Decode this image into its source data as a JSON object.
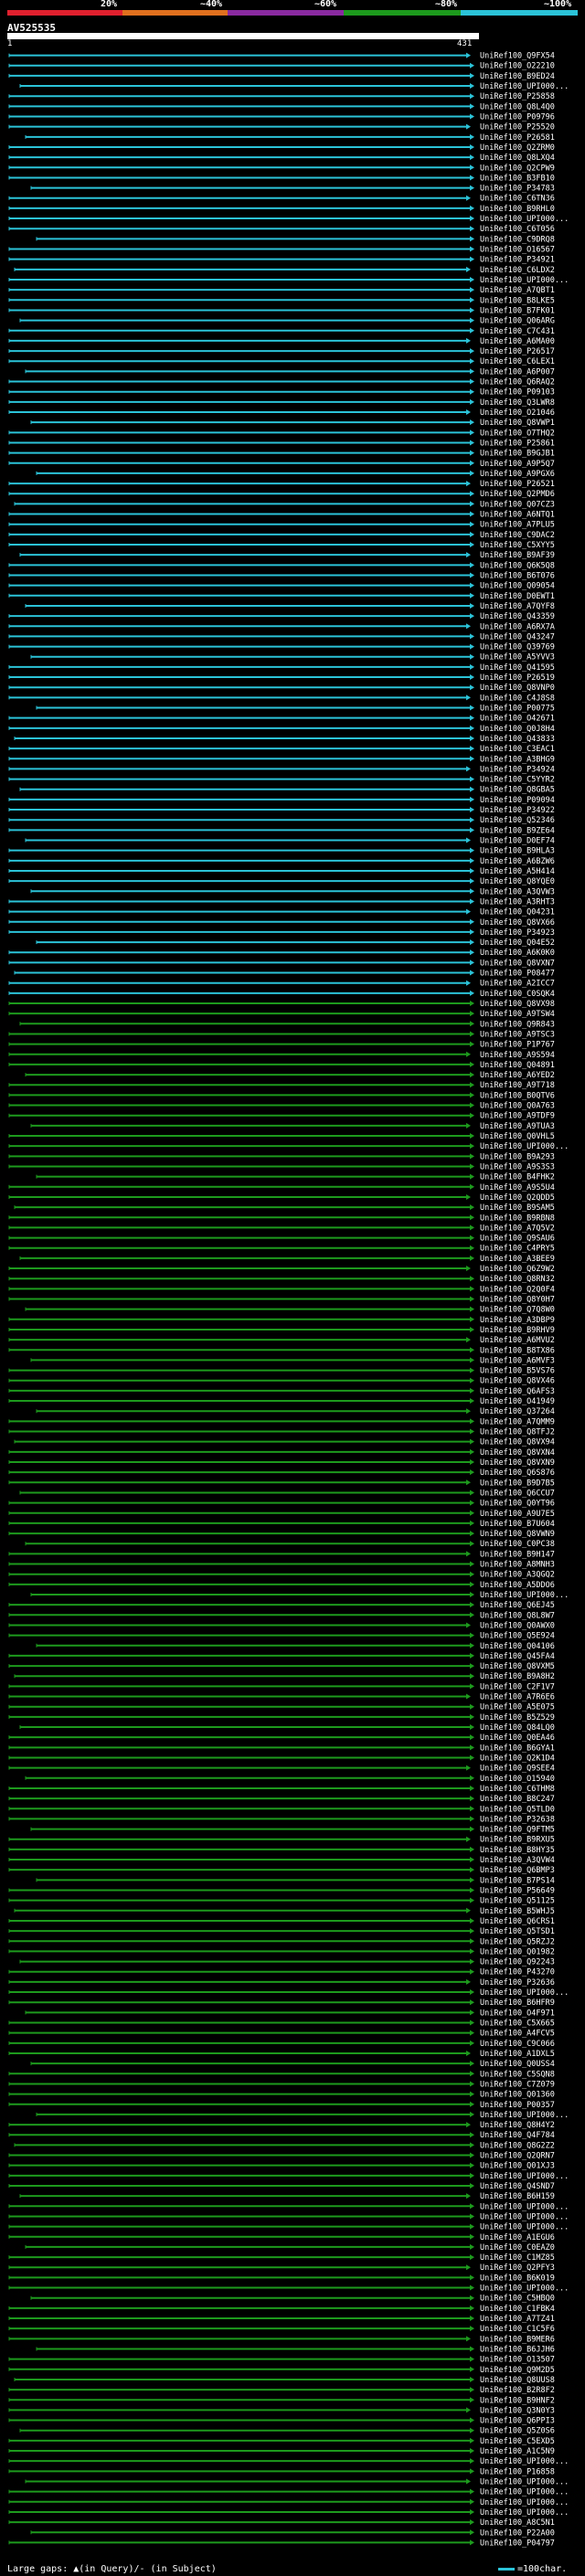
{
  "legend": {
    "labels": [
      "20%",
      "~40%",
      "~60%",
      "~80%",
      "~100%"
    ],
    "colors": [
      "#e0202e",
      "#e0701e",
      "#8a2aa0",
      "#1d9a1d",
      "#2bc3d8"
    ]
  },
  "query": {
    "id": "AV525535",
    "start": "1",
    "end": "431"
  },
  "footer": {
    "large_gaps": "Large gaps: ▲(in Query)/- (in Subject)",
    "key": "=100char."
  },
  "hits": [
    {
      "id": "UniRef100_Q9FX54",
      "color": "cyan"
    },
    {
      "id": "UniRef100_O22210",
      "color": "cyan"
    },
    {
      "id": "UniRef100_B9ED24",
      "color": "cyan"
    },
    {
      "id": "UniRef100_UPI000...",
      "color": "cyan"
    },
    {
      "id": "UniRef100_P25858",
      "color": "cyan"
    },
    {
      "id": "UniRef100_Q8L4Q0",
      "color": "cyan"
    },
    {
      "id": "UniRef100_P09796",
      "color": "cyan"
    },
    {
      "id": "UniRef100_P25520",
      "color": "cyan"
    },
    {
      "id": "UniRef100_P26581",
      "color": "cyan"
    },
    {
      "id": "UniRef100_Q2ZRM0",
      "color": "cyan"
    },
    {
      "id": "UniRef100_Q8LXQ4",
      "color": "cyan"
    },
    {
      "id": "UniRef100_Q2CPW9",
      "color": "cyan"
    },
    {
      "id": "UniRef100_B3FB10",
      "color": "cyan"
    },
    {
      "id": "UniRef100_P34783",
      "color": "cyan"
    },
    {
      "id": "UniRef100_C6TN36",
      "color": "cyan"
    },
    {
      "id": "UniRef100_B9RHL0",
      "color": "cyan"
    },
    {
      "id": "UniRef100_UPI000...",
      "color": "cyan"
    },
    {
      "id": "UniRef100_C6T056",
      "color": "cyan"
    },
    {
      "id": "UniRef100_C9DRQ8",
      "color": "cyan"
    },
    {
      "id": "UniRef100_O16567",
      "color": "cyan"
    },
    {
      "id": "UniRef100_P34921",
      "color": "cyan"
    },
    {
      "id": "UniRef100_C6LDX2",
      "color": "cyan"
    },
    {
      "id": "UniRef100_UPI000...",
      "color": "cyan"
    },
    {
      "id": "UniRef100_A7QBT1",
      "color": "cyan"
    },
    {
      "id": "UniRef100_B8LKE5",
      "color": "cyan"
    },
    {
      "id": "UniRef100_B7FK01",
      "color": "cyan"
    },
    {
      "id": "UniRef100_Q06ARG",
      "color": "cyan"
    },
    {
      "id": "UniRef100_C7C431",
      "color": "cyan"
    },
    {
      "id": "UniRef100_A6MA00",
      "color": "cyan"
    },
    {
      "id": "UniRef100_P26517",
      "color": "cyan"
    },
    {
      "id": "UniRef100_C6LEX1",
      "color": "cyan"
    },
    {
      "id": "UniRef100_A6P007",
      "color": "cyan"
    },
    {
      "id": "UniRef100_Q6RAQ2",
      "color": "cyan"
    },
    {
      "id": "UniRef100_P09103",
      "color": "cyan"
    },
    {
      "id": "UniRef100_Q3LWR8",
      "color": "cyan"
    },
    {
      "id": "UniRef100_O21046",
      "color": "cyan"
    },
    {
      "id": "UniRef100_Q8VWP1",
      "color": "cyan"
    },
    {
      "id": "UniRef100_O7THQ2",
      "color": "cyan"
    },
    {
      "id": "UniRef100_P25861",
      "color": "cyan"
    },
    {
      "id": "UniRef100_B9GJB1",
      "color": "cyan"
    },
    {
      "id": "UniRef100_A9P5Q7",
      "color": "cyan"
    },
    {
      "id": "UniRef100_A9PGX6",
      "color": "cyan"
    },
    {
      "id": "UniRef100_P26521",
      "color": "cyan"
    },
    {
      "id": "UniRef100_Q2PMD6",
      "color": "cyan"
    },
    {
      "id": "UniRef100_Q07CZ3",
      "color": "cyan"
    },
    {
      "id": "UniRef100_A6NTQ1",
      "color": "cyan"
    },
    {
      "id": "UniRef100_A7PLU5",
      "color": "cyan"
    },
    {
      "id": "UniRef100_C9DAC2",
      "color": "cyan"
    },
    {
      "id": "UniRef100_C5XYY5",
      "color": "cyan"
    },
    {
      "id": "UniRef100_B9AF39",
      "color": "cyan"
    },
    {
      "id": "UniRef100_Q6K5Q8",
      "color": "cyan"
    },
    {
      "id": "UniRef100_B6T076",
      "color": "cyan"
    },
    {
      "id": "UniRef100_Q09054",
      "color": "cyan"
    },
    {
      "id": "UniRef100_D0EWT1",
      "color": "cyan"
    },
    {
      "id": "UniRef100_A7QYF8",
      "color": "cyan"
    },
    {
      "id": "UniRef100_Q43359",
      "color": "cyan"
    },
    {
      "id": "UniRef100_A6RX7A",
      "color": "cyan"
    },
    {
      "id": "UniRef100_Q43247",
      "color": "cyan"
    },
    {
      "id": "UniRef100_Q39769",
      "color": "cyan"
    },
    {
      "id": "UniRef100_A5YVV3",
      "color": "cyan"
    },
    {
      "id": "UniRef100_Q41595",
      "color": "cyan"
    },
    {
      "id": "UniRef100_P26519",
      "color": "cyan"
    },
    {
      "id": "UniRef100_Q8VNP0",
      "color": "cyan"
    },
    {
      "id": "UniRef100_C4J8S8",
      "color": "cyan"
    },
    {
      "id": "UniRef100_P00775",
      "color": "cyan"
    },
    {
      "id": "UniRef100_O42671",
      "color": "cyan"
    },
    {
      "id": "UniRef100_Q0J8H4",
      "color": "cyan"
    },
    {
      "id": "UniRef100_Q43833",
      "color": "cyan"
    },
    {
      "id": "UniRef100_C3EAC1",
      "color": "cyan"
    },
    {
      "id": "UniRef100_A3BHG9",
      "color": "cyan"
    },
    {
      "id": "UniRef100_P34924",
      "color": "cyan"
    },
    {
      "id": "UniRef100_C5YYR2",
      "color": "cyan"
    },
    {
      "id": "UniRef100_Q8GBA5",
      "color": "cyan"
    },
    {
      "id": "UniRef100_P09094",
      "color": "cyan"
    },
    {
      "id": "UniRef100_P34922",
      "color": "cyan"
    },
    {
      "id": "UniRef100_Q52346",
      "color": "cyan"
    },
    {
      "id": "UniRef100_B9ZE64",
      "color": "cyan"
    },
    {
      "id": "UniRef100_D0EF74",
      "color": "cyan"
    },
    {
      "id": "UniRef100_B9HLA3",
      "color": "cyan"
    },
    {
      "id": "UniRef100_A6BZW6",
      "color": "cyan"
    },
    {
      "id": "UniRef100_A5H414",
      "color": "cyan"
    },
    {
      "id": "UniRef100_Q8YQE0",
      "color": "cyan"
    },
    {
      "id": "UniRef100_A3QVW3",
      "color": "cyan"
    },
    {
      "id": "UniRef100_A3RHT3",
      "color": "cyan"
    },
    {
      "id": "UniRef100_Q04231",
      "color": "cyan"
    },
    {
      "id": "UniRef100_Q8VX66",
      "color": "cyan"
    },
    {
      "id": "UniRef100_P34923",
      "color": "cyan"
    },
    {
      "id": "UniRef100_Q04E52",
      "color": "cyan"
    },
    {
      "id": "UniRef100_A6K0K0",
      "color": "cyan"
    },
    {
      "id": "UniRef100_Q8VXN7",
      "color": "cyan"
    },
    {
      "id": "UniRef100_P08477",
      "color": "cyan"
    },
    {
      "id": "UniRef100_A2ICC7",
      "color": "cyan"
    },
    {
      "id": "UniRef100_C0SQK4",
      "color": "cyan"
    },
    {
      "id": "UniRef100_Q8VX98",
      "color": "green"
    },
    {
      "id": "UniRef100_A9TSW4",
      "color": "green"
    },
    {
      "id": "UniRef100_Q9R843",
      "color": "green"
    },
    {
      "id": "UniRef100_A9TSC3",
      "color": "green"
    },
    {
      "id": "UniRef100_P1P767",
      "color": "green"
    },
    {
      "id": "UniRef100_A9S594",
      "color": "green"
    },
    {
      "id": "UniRef100_Q04891",
      "color": "green"
    },
    {
      "id": "UniRef100_A6YED2",
      "color": "green"
    },
    {
      "id": "UniRef100_A9T718",
      "color": "green"
    },
    {
      "id": "UniRef100_B0QTV6",
      "color": "green"
    },
    {
      "id": "UniRef100_Q0A763",
      "color": "green"
    },
    {
      "id": "UniRef100_A9TDF9",
      "color": "green"
    },
    {
      "id": "UniRef100_A9TUA3",
      "color": "green"
    },
    {
      "id": "UniRef100_Q0VHL5",
      "color": "green"
    },
    {
      "id": "UniRef100_UPI000...",
      "color": "green"
    },
    {
      "id": "UniRef100_B9A293",
      "color": "green"
    },
    {
      "id": "UniRef100_A9S3S3",
      "color": "green"
    },
    {
      "id": "UniRef100_B4FHK2",
      "color": "green"
    },
    {
      "id": "UniRef100_A9S5U4",
      "color": "green"
    },
    {
      "id": "UniRef100_Q2QDD5",
      "color": "green"
    },
    {
      "id": "UniRef100_B9SAM5",
      "color": "green"
    },
    {
      "id": "UniRef100_B9RBN8",
      "color": "green"
    },
    {
      "id": "UniRef100_A7Q5V2",
      "color": "green"
    },
    {
      "id": "UniRef100_Q9SAU6",
      "color": "green"
    },
    {
      "id": "UniRef100_C4PRY5",
      "color": "green"
    },
    {
      "id": "UniRef100_A3BEE9",
      "color": "green"
    },
    {
      "id": "UniRef100_Q6Z9W2",
      "color": "green"
    },
    {
      "id": "UniRef100_Q8RN32",
      "color": "green"
    },
    {
      "id": "UniRef100_Q2Q0F4",
      "color": "green"
    },
    {
      "id": "UniRef100_Q8Y0H7",
      "color": "green"
    },
    {
      "id": "UniRef100_Q7Q8W0",
      "color": "green"
    },
    {
      "id": "UniRef100_A3DBP9",
      "color": "green"
    },
    {
      "id": "UniRef100_B9RHV9",
      "color": "green"
    },
    {
      "id": "UniRef100_A6MVU2",
      "color": "green"
    },
    {
      "id": "UniRef100_B8TX86",
      "color": "green"
    },
    {
      "id": "UniRef100_A6MVF3",
      "color": "green"
    },
    {
      "id": "UniRef100_B5VS76",
      "color": "green"
    },
    {
      "id": "UniRef100_Q8VX46",
      "color": "green"
    },
    {
      "id": "UniRef100_Q6AFS3",
      "color": "green"
    },
    {
      "id": "UniRef100_O41949",
      "color": "green"
    },
    {
      "id": "UniRef100_Q37264",
      "color": "green"
    },
    {
      "id": "UniRef100_A7QMM9",
      "color": "green"
    },
    {
      "id": "UniRef100_Q8TFJ2",
      "color": "green"
    },
    {
      "id": "UniRef100_Q8VX94",
      "color": "green"
    },
    {
      "id": "UniRef100_Q8VXN4",
      "color": "green"
    },
    {
      "id": "UniRef100_Q8VXN9",
      "color": "green"
    },
    {
      "id": "UniRef100_Q6S876",
      "color": "green"
    },
    {
      "id": "UniRef100_B9D7B5",
      "color": "green"
    },
    {
      "id": "UniRef100_Q6CCU7",
      "color": "green"
    },
    {
      "id": "UniRef100_Q0YT96",
      "color": "green"
    },
    {
      "id": "UniRef100_A9U7E5",
      "color": "green"
    },
    {
      "id": "UniRef100_B7U604",
      "color": "green"
    },
    {
      "id": "UniRef100_Q8VWN9",
      "color": "green"
    },
    {
      "id": "UniRef100_C0PC38",
      "color": "green"
    },
    {
      "id": "UniRef100_B9H147",
      "color": "green"
    },
    {
      "id": "UniRef100_A8MNH3",
      "color": "green"
    },
    {
      "id": "UniRef100_A3QGQ2",
      "color": "green"
    },
    {
      "id": "UniRef100_A5DDO6",
      "color": "green"
    },
    {
      "id": "UniRef100_UPI000...",
      "color": "green"
    },
    {
      "id": "UniRef100_Q6EJ45",
      "color": "green"
    },
    {
      "id": "UniRef100_Q8L8W7",
      "color": "green"
    },
    {
      "id": "UniRef100_Q0AWX0",
      "color": "green"
    },
    {
      "id": "UniRef100_Q5E924",
      "color": "green"
    },
    {
      "id": "UniRef100_Q04106",
      "color": "green"
    },
    {
      "id": "UniRef100_Q45FA4",
      "color": "green"
    },
    {
      "id": "UniRef100_Q8VXM5",
      "color": "green"
    },
    {
      "id": "UniRef100_B9A8H2",
      "color": "green"
    },
    {
      "id": "UniRef100_C2F1V7",
      "color": "green"
    },
    {
      "id": "UniRef100_A7R6E6",
      "color": "green"
    },
    {
      "id": "UniRef100_A5E075",
      "color": "green"
    },
    {
      "id": "UniRef100_B5Z529",
      "color": "green"
    },
    {
      "id": "UniRef100_Q84LQ0",
      "color": "green"
    },
    {
      "id": "UniRef100_Q0EA46",
      "color": "green"
    },
    {
      "id": "UniRef100_B6GYA1",
      "color": "green"
    },
    {
      "id": "UniRef100_Q2K1D4",
      "color": "green"
    },
    {
      "id": "UniRef100_Q9SEE4",
      "color": "green"
    },
    {
      "id": "UniRef100_O15940",
      "color": "green"
    },
    {
      "id": "UniRef100_C6THM8",
      "color": "green"
    },
    {
      "id": "UniRef100_B8C247",
      "color": "green"
    },
    {
      "id": "UniRef100_Q5TLD0",
      "color": "green"
    },
    {
      "id": "UniRef100_P32638",
      "color": "green"
    },
    {
      "id": "UniRef100_Q9FTM5",
      "color": "green"
    },
    {
      "id": "UniRef100_B9RXU5",
      "color": "green"
    },
    {
      "id": "UniRef100_B8HY35",
      "color": "green"
    },
    {
      "id": "UniRef100_A3QVW4",
      "color": "green"
    },
    {
      "id": "UniRef100_Q6BMP3",
      "color": "green"
    },
    {
      "id": "UniRef100_B7PS14",
      "color": "green"
    },
    {
      "id": "UniRef100_P56649",
      "color": "green"
    },
    {
      "id": "UniRef100_Q51125",
      "color": "green"
    },
    {
      "id": "UniRef100_B5WHJ5",
      "color": "green"
    },
    {
      "id": "UniRef100_Q6CRS1",
      "color": "green"
    },
    {
      "id": "UniRef100_Q5TSD1",
      "color": "green"
    },
    {
      "id": "UniRef100_Q5RZJ2",
      "color": "green"
    },
    {
      "id": "UniRef100_Q01982",
      "color": "green"
    },
    {
      "id": "UniRef100_Q92243",
      "color": "green"
    },
    {
      "id": "UniRef100_P43270",
      "color": "green"
    },
    {
      "id": "UniRef100_P32636",
      "color": "green"
    },
    {
      "id": "UniRef100_UPI000...",
      "color": "green"
    },
    {
      "id": "UniRef100_B6HFR9",
      "color": "green"
    },
    {
      "id": "UniRef100_O4F971",
      "color": "green"
    },
    {
      "id": "UniRef100_C5X665",
      "color": "green"
    },
    {
      "id": "UniRef100_A4FCV5",
      "color": "green"
    },
    {
      "id": "UniRef100_C9C066",
      "color": "green"
    },
    {
      "id": "UniRef100_A1DXL5",
      "color": "green"
    },
    {
      "id": "UniRef100_Q0USS4",
      "color": "green"
    },
    {
      "id": "UniRef100_C5SQN8",
      "color": "green"
    },
    {
      "id": "UniRef100_C7Z079",
      "color": "green"
    },
    {
      "id": "UniRef100_Q01360",
      "color": "green"
    },
    {
      "id": "UniRef100_P00357",
      "color": "green"
    },
    {
      "id": "UniRef100_UPI000...",
      "color": "green"
    },
    {
      "id": "UniRef100_Q8H4Y2",
      "color": "green"
    },
    {
      "id": "UniRef100_Q4F784",
      "color": "green"
    },
    {
      "id": "UniRef100_Q8G2Z2",
      "color": "green"
    },
    {
      "id": "UniRef100_Q2QRN7",
      "color": "green"
    },
    {
      "id": "UniRef100_Q01XJ3",
      "color": "green"
    },
    {
      "id": "UniRef100_UPI000...",
      "color": "green"
    },
    {
      "id": "UniRef100_Q4SND7",
      "color": "green"
    },
    {
      "id": "UniRef100_B6H159",
      "color": "green"
    },
    {
      "id": "UniRef100_UPI000...",
      "color": "green"
    },
    {
      "id": "UniRef100_UPI000...",
      "color": "green"
    },
    {
      "id": "UniRef100_UPI000...",
      "color": "green"
    },
    {
      "id": "UniRef100_A1EGU6",
      "color": "green"
    },
    {
      "id": "UniRef100_C0EAZ0",
      "color": "green"
    },
    {
      "id": "UniRef100_C1MZ85",
      "color": "green"
    },
    {
      "id": "UniRef100_Q2PFY3",
      "color": "green"
    },
    {
      "id": "UniRef100_B6K019",
      "color": "green"
    },
    {
      "id": "UniRef100_UPI000...",
      "color": "green"
    },
    {
      "id": "UniRef100_C5HBQ0",
      "color": "green"
    },
    {
      "id": "UniRef100_C1FBK4",
      "color": "green"
    },
    {
      "id": "UniRef100_A7TZ41",
      "color": "green"
    },
    {
      "id": "UniRef100_C1C5F6",
      "color": "green"
    },
    {
      "id": "UniRef100_B9MER6",
      "color": "green"
    },
    {
      "id": "UniRef100_B6JJH6",
      "color": "green"
    },
    {
      "id": "UniRef100_O13507",
      "color": "green"
    },
    {
      "id": "UniRef100_Q9M2D5",
      "color": "green"
    },
    {
      "id": "UniRef100_Q8UUS8",
      "color": "green"
    },
    {
      "id": "UniRef100_B2R8F2",
      "color": "green"
    },
    {
      "id": "UniRef100_B9HNF2",
      "color": "green"
    },
    {
      "id": "UniRef100_Q3N0Y3",
      "color": "green"
    },
    {
      "id": "UniRef100_Q6PPI3",
      "color": "green"
    },
    {
      "id": "UniRef100_Q5Z0S6",
      "color": "green"
    },
    {
      "id": "UniRef100_C5EXD5",
      "color": "green"
    },
    {
      "id": "UniRef100_A1C5N9",
      "color": "green"
    },
    {
      "id": "UniRef100_UPI000...",
      "color": "green"
    },
    {
      "id": "UniRef100_P16858",
      "color": "green"
    },
    {
      "id": "UniRef100_UPI000...",
      "color": "green"
    },
    {
      "id": "UniRef100_UPI000...",
      "color": "green"
    },
    {
      "id": "UniRef100_UPI000...",
      "color": "green"
    },
    {
      "id": "UniRef100_UPI000...",
      "color": "green"
    },
    {
      "id": "UniRef100_A8C5N1",
      "color": "green"
    },
    {
      "id": "UniRef100_P22A00",
      "color": "green"
    },
    {
      "id": "UniRef100_P04797",
      "color": "green"
    }
  ]
}
